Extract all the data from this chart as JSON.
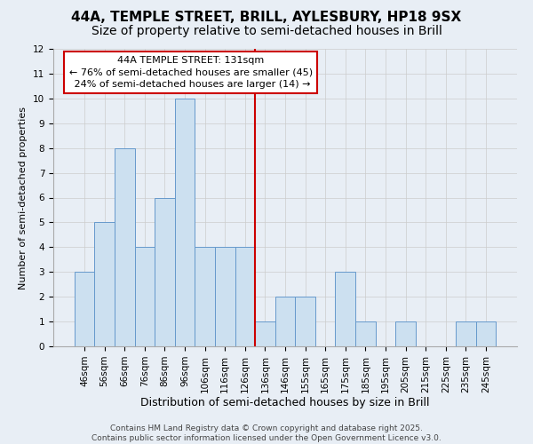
{
  "title1": "44A, TEMPLE STREET, BRILL, AYLESBURY, HP18 9SX",
  "title2": "Size of property relative to semi-detached houses in Brill",
  "xlabel": "Distribution of semi-detached houses by size in Brill",
  "ylabel": "Number of semi-detached properties",
  "categories": [
    "46sqm",
    "56sqm",
    "66sqm",
    "76sqm",
    "86sqm",
    "96sqm",
    "106sqm",
    "116sqm",
    "126sqm",
    "136sqm",
    "146sqm",
    "155sqm",
    "165sqm",
    "175sqm",
    "185sqm",
    "195sqm",
    "205sqm",
    "215sqm",
    "225sqm",
    "235sqm",
    "245sqm"
  ],
  "values": [
    3,
    5,
    8,
    4,
    6,
    10,
    4,
    4,
    4,
    1,
    2,
    2,
    0,
    3,
    1,
    0,
    1,
    0,
    0,
    1,
    1
  ],
  "bar_color": "#cce0f0",
  "bar_edge_color": "#6699cc",
  "highlight_pct_smaller": 76,
  "highlight_n_smaller": 45,
  "highlight_pct_larger": 24,
  "highlight_n_larger": 14,
  "ylim": [
    0,
    12
  ],
  "yticks": [
    0,
    1,
    2,
    3,
    4,
    5,
    6,
    7,
    8,
    9,
    10,
    11,
    12
  ],
  "vline_index": 8.5,
  "vline_color": "#cc0000",
  "annotation_box_color": "#cc0000",
  "grid_color": "#cccccc",
  "background_color": "#e8eef5",
  "footer_text": "Contains HM Land Registry data © Crown copyright and database right 2025.\nContains public sector information licensed under the Open Government Licence v3.0.",
  "title1_fontsize": 11,
  "title2_fontsize": 10,
  "xlabel_fontsize": 9,
  "ylabel_fontsize": 8,
  "tick_fontsize": 7.5,
  "annotation_fontsize": 8,
  "footer_fontsize": 6.5
}
